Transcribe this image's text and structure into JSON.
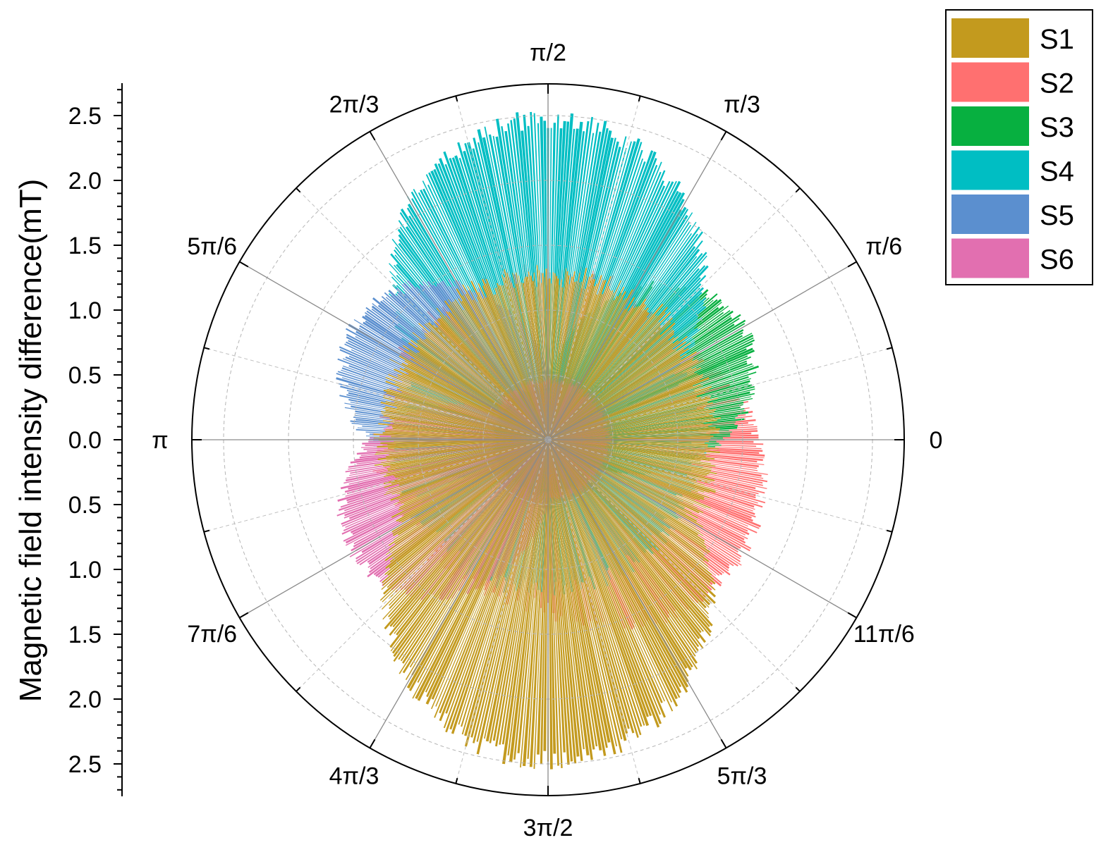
{
  "chart_data": {
    "type": "polar-bar",
    "ylabel": "Magnetic field intensity difference(mT)",
    "radial_ticks": [
      "0.0",
      "0.5",
      "1.0",
      "1.5",
      "2.0",
      "2.5"
    ],
    "radial_tick_values": [
      0,
      0.5,
      1.0,
      1.5,
      2.0,
      2.5
    ],
    "r_max": 2.75,
    "angle_labels": [
      "0",
      "π/6",
      "π/3",
      "π/2",
      "2π/3",
      "5π/6",
      "π",
      "7π/6",
      "4π/3",
      "3π/2",
      "5π/3",
      "11π/6"
    ],
    "angle_label_values_deg": [
      0,
      30,
      60,
      90,
      120,
      150,
      180,
      210,
      240,
      270,
      300,
      330
    ],
    "grid": true,
    "legend_position": "top-right",
    "series": [
      {
        "name": "S1",
        "color": "#c39a1e",
        "peak_angle_deg": 270,
        "peak_value": 2.55,
        "base_value": 1.38
      },
      {
        "name": "S2",
        "color": "#ff7070",
        "peak_angle_deg": 330,
        "peak_value": 1.78,
        "base_value": 1.38
      },
      {
        "name": "S3",
        "color": "#07b040",
        "peak_angle_deg": 30,
        "peak_value": 1.78,
        "base_value": 0.45
      },
      {
        "name": "S4",
        "color": "#00bec3",
        "peak_angle_deg": 90,
        "peak_value": 2.55,
        "base_value": 1.25
      },
      {
        "name": "S5",
        "color": "#5b8fcf",
        "peak_angle_deg": 150,
        "peak_value": 1.78,
        "base_value": 0.55
      },
      {
        "name": "S6",
        "color": "#e26fb0",
        "peak_angle_deg": 210,
        "peak_value": 1.78,
        "base_value": 0.5
      }
    ]
  }
}
